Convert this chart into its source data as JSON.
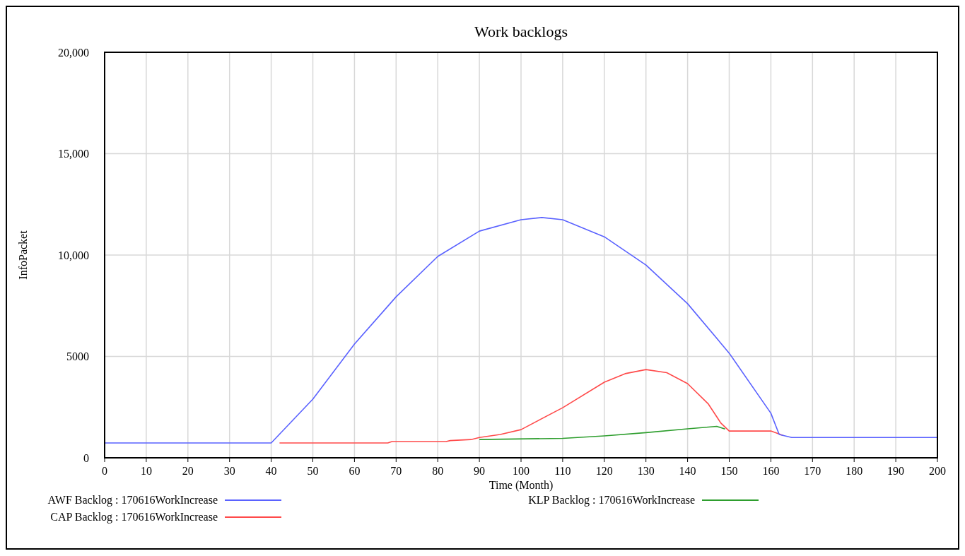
{
  "chart_data": {
    "type": "line",
    "title": "Work backlogs",
    "xlabel": "Time (Month)",
    "ylabel": "InfoPacket",
    "xlim": [
      0,
      200
    ],
    "xticks": [
      0,
      10,
      20,
      30,
      40,
      50,
      60,
      70,
      80,
      90,
      100,
      110,
      120,
      130,
      140,
      150,
      160,
      170,
      180,
      190,
      200
    ],
    "ylim": [
      0,
      20000
    ],
    "yticks": [
      0,
      {
        "value": 5000,
        "label": "5000"
      },
      {
        "value": 10000,
        "label": "10,000"
      },
      {
        "value": 15000,
        "label": "15,000"
      },
      {
        "value": 20000,
        "label": "20,000"
      }
    ],
    "grid": true,
    "legend": "bottom",
    "series": [
      {
        "name": "AWF Backlog : 170616WorkIncrease",
        "color": "#5a62ff",
        "x": [
          0,
          40,
          50,
          60,
          70,
          80,
          90,
          100,
          105,
          110,
          120,
          130,
          140,
          150,
          160,
          162,
          165,
          200
        ],
        "values": [
          730,
          730,
          2890,
          5610,
          7940,
          9930,
          11180,
          11740,
          11850,
          11740,
          10900,
          9510,
          7600,
          5160,
          2200,
          1150,
          1000,
          1000
        ]
      },
      {
        "name": "CAP Backlog : 170616WorkIncrease",
        "color": "#ff4a4a",
        "x": [
          42,
          68,
          69,
          82,
          83,
          88,
          90,
          95,
          100,
          110,
          120,
          125,
          130,
          135,
          140,
          145,
          148,
          150,
          160,
          163
        ],
        "values": [
          730,
          730,
          800,
          800,
          850,
          900,
          1000,
          1150,
          1390,
          2470,
          3730,
          4150,
          4350,
          4200,
          3660,
          2650,
          1710,
          1320,
          1320,
          1100
        ]
      },
      {
        "name": "KLP Backlog : 170616WorkIncrease",
        "color": "#2e9e2e",
        "x": [
          90,
          110,
          120,
          130,
          140,
          147,
          149
        ],
        "values": [
          900,
          960,
          1080,
          1240,
          1430,
          1550,
          1420
        ]
      }
    ]
  }
}
